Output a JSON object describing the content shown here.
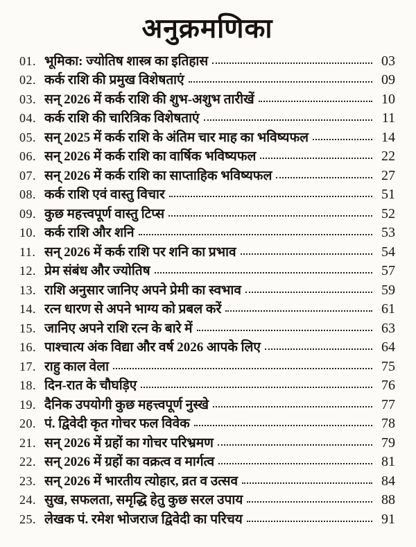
{
  "page": {
    "title": "अनुक्रमणिका"
  },
  "colors": {
    "background": "#fcfbf8",
    "text": "#171310",
    "leader": "#24201c"
  },
  "toc": {
    "entries": [
      {
        "num": "01.",
        "title": "भूमिका: ज्योतिष शास्त्र का इतिहास",
        "page": "03"
      },
      {
        "num": "02.",
        "title": "कर्क राशि की प्रमुख विशेषताएं",
        "page": "09"
      },
      {
        "num": "03.",
        "title": "सन् 2026 में कर्क राशि की शुभ-अशुभ तारीखें",
        "page": "10"
      },
      {
        "num": "04.",
        "title": "कर्क राशि की चारित्रिक विशेषताएं",
        "page": "11"
      },
      {
        "num": "05.",
        "title": "सन् 2025 में कर्क राशि के अंतिम चार माह का भविष्यफल",
        "page": "14"
      },
      {
        "num": "06.",
        "title": "सन् 2026 में कर्क राशि का वार्षिक भविष्यफल",
        "page": "22"
      },
      {
        "num": "07.",
        "title": "सन् 2026 में कर्क राशि का साप्ताहिक भविष्यफल",
        "page": "27"
      },
      {
        "num": "08.",
        "title": "कर्क राशि एवं वास्तु विचार",
        "page": "51"
      },
      {
        "num": "09.",
        "title": "कुछ महत्त्वपूर्ण वास्तु टिप्स",
        "page": "52"
      },
      {
        "num": "10.",
        "title": "कर्क राशि और शनि",
        "page": "53"
      },
      {
        "num": "11.",
        "title": "सन् 2026 में कर्क राशि पर शनि का प्रभाव",
        "page": "54"
      },
      {
        "num": "12.",
        "title": "प्रेम संबंध और ज्योतिष",
        "page": "57"
      },
      {
        "num": "13.",
        "title": "राशि अनुसार जानिए अपने प्रेमी का स्वभाव",
        "page": "59"
      },
      {
        "num": "14.",
        "title": "रत्न धारण से अपने भाग्य को प्रबल करें",
        "page": "61"
      },
      {
        "num": "15.",
        "title": "जानिए अपने राशि रत्न के बारे में",
        "page": "63"
      },
      {
        "num": "16.",
        "title": "पाश्चात्य अंक विद्या और वर्ष 2026 आपके लिए",
        "page": "64"
      },
      {
        "num": "17.",
        "title": "राहु काल वेला",
        "page": "75"
      },
      {
        "num": "18.",
        "title": "दिन-रात के चौघड़िए",
        "page": "76"
      },
      {
        "num": "19.",
        "title": "दैनिक उपयोगी कुछ महत्त्वपूर्ण नुस्खे",
        "page": "77"
      },
      {
        "num": "20.",
        "title": "पं. द्विवेदी कृत गोचर फल विवेक",
        "page": "78"
      },
      {
        "num": "21.",
        "title": "सन् 2026 में ग्रहों का गोचर परिभ्रमण",
        "page": "79"
      },
      {
        "num": "22.",
        "title": "सन् 2026 में ग्रहों का वक्रत्व व मार्गत्व",
        "page": "81"
      },
      {
        "num": "23.",
        "title": "सन् 2026 में भारतीय त्योहार, व्रत व उत्सव",
        "page": "84"
      },
      {
        "num": "24.",
        "title": "सुख, सफलता, समृद्धि हेतु कुछ सरल उपाय",
        "page": "88"
      },
      {
        "num": "25.",
        "title": "लेखक पं. रमेश भोजराज द्विवेदी का परिचय",
        "page": "91"
      }
    ]
  }
}
